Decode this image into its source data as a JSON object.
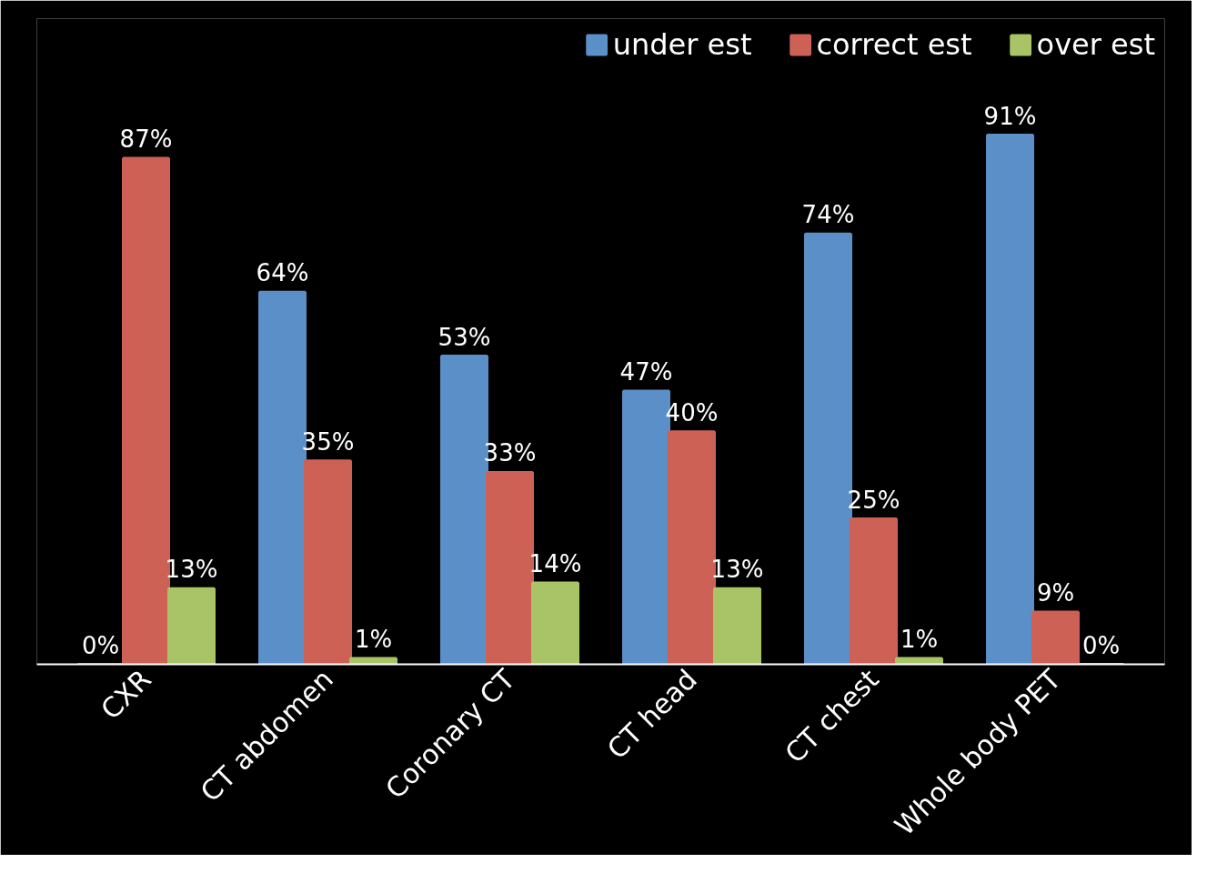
{
  "chart_data": {
    "type": "bar",
    "categories": [
      "CXR",
      "CT abdomen",
      "Coronary CT",
      "CT head",
      "CT chest",
      "Whole body PET"
    ],
    "series": [
      {
        "name": "under est",
        "color": "#5b8fc7",
        "values": [
          0,
          64,
          53,
          47,
          74,
          91
        ],
        "value_labels": [
          "0%",
          "64%",
          "53%",
          "47%",
          "74%",
          "91%"
        ]
      },
      {
        "name": "correct est",
        "color": "#cd6155",
        "values": [
          87,
          35,
          33,
          40,
          25,
          9
        ],
        "value_labels": [
          "87%",
          "35%",
          "33%",
          "40%",
          "25%",
          "9%"
        ]
      },
      {
        "name": "over est",
        "color": "#a9c466",
        "values": [
          13,
          1,
          14,
          13,
          1,
          0
        ],
        "value_labels": [
          "13%",
          "1%",
          "14%",
          "13%",
          "1%",
          "0%"
        ]
      }
    ],
    "legend": "top right",
    "grid": false
  }
}
